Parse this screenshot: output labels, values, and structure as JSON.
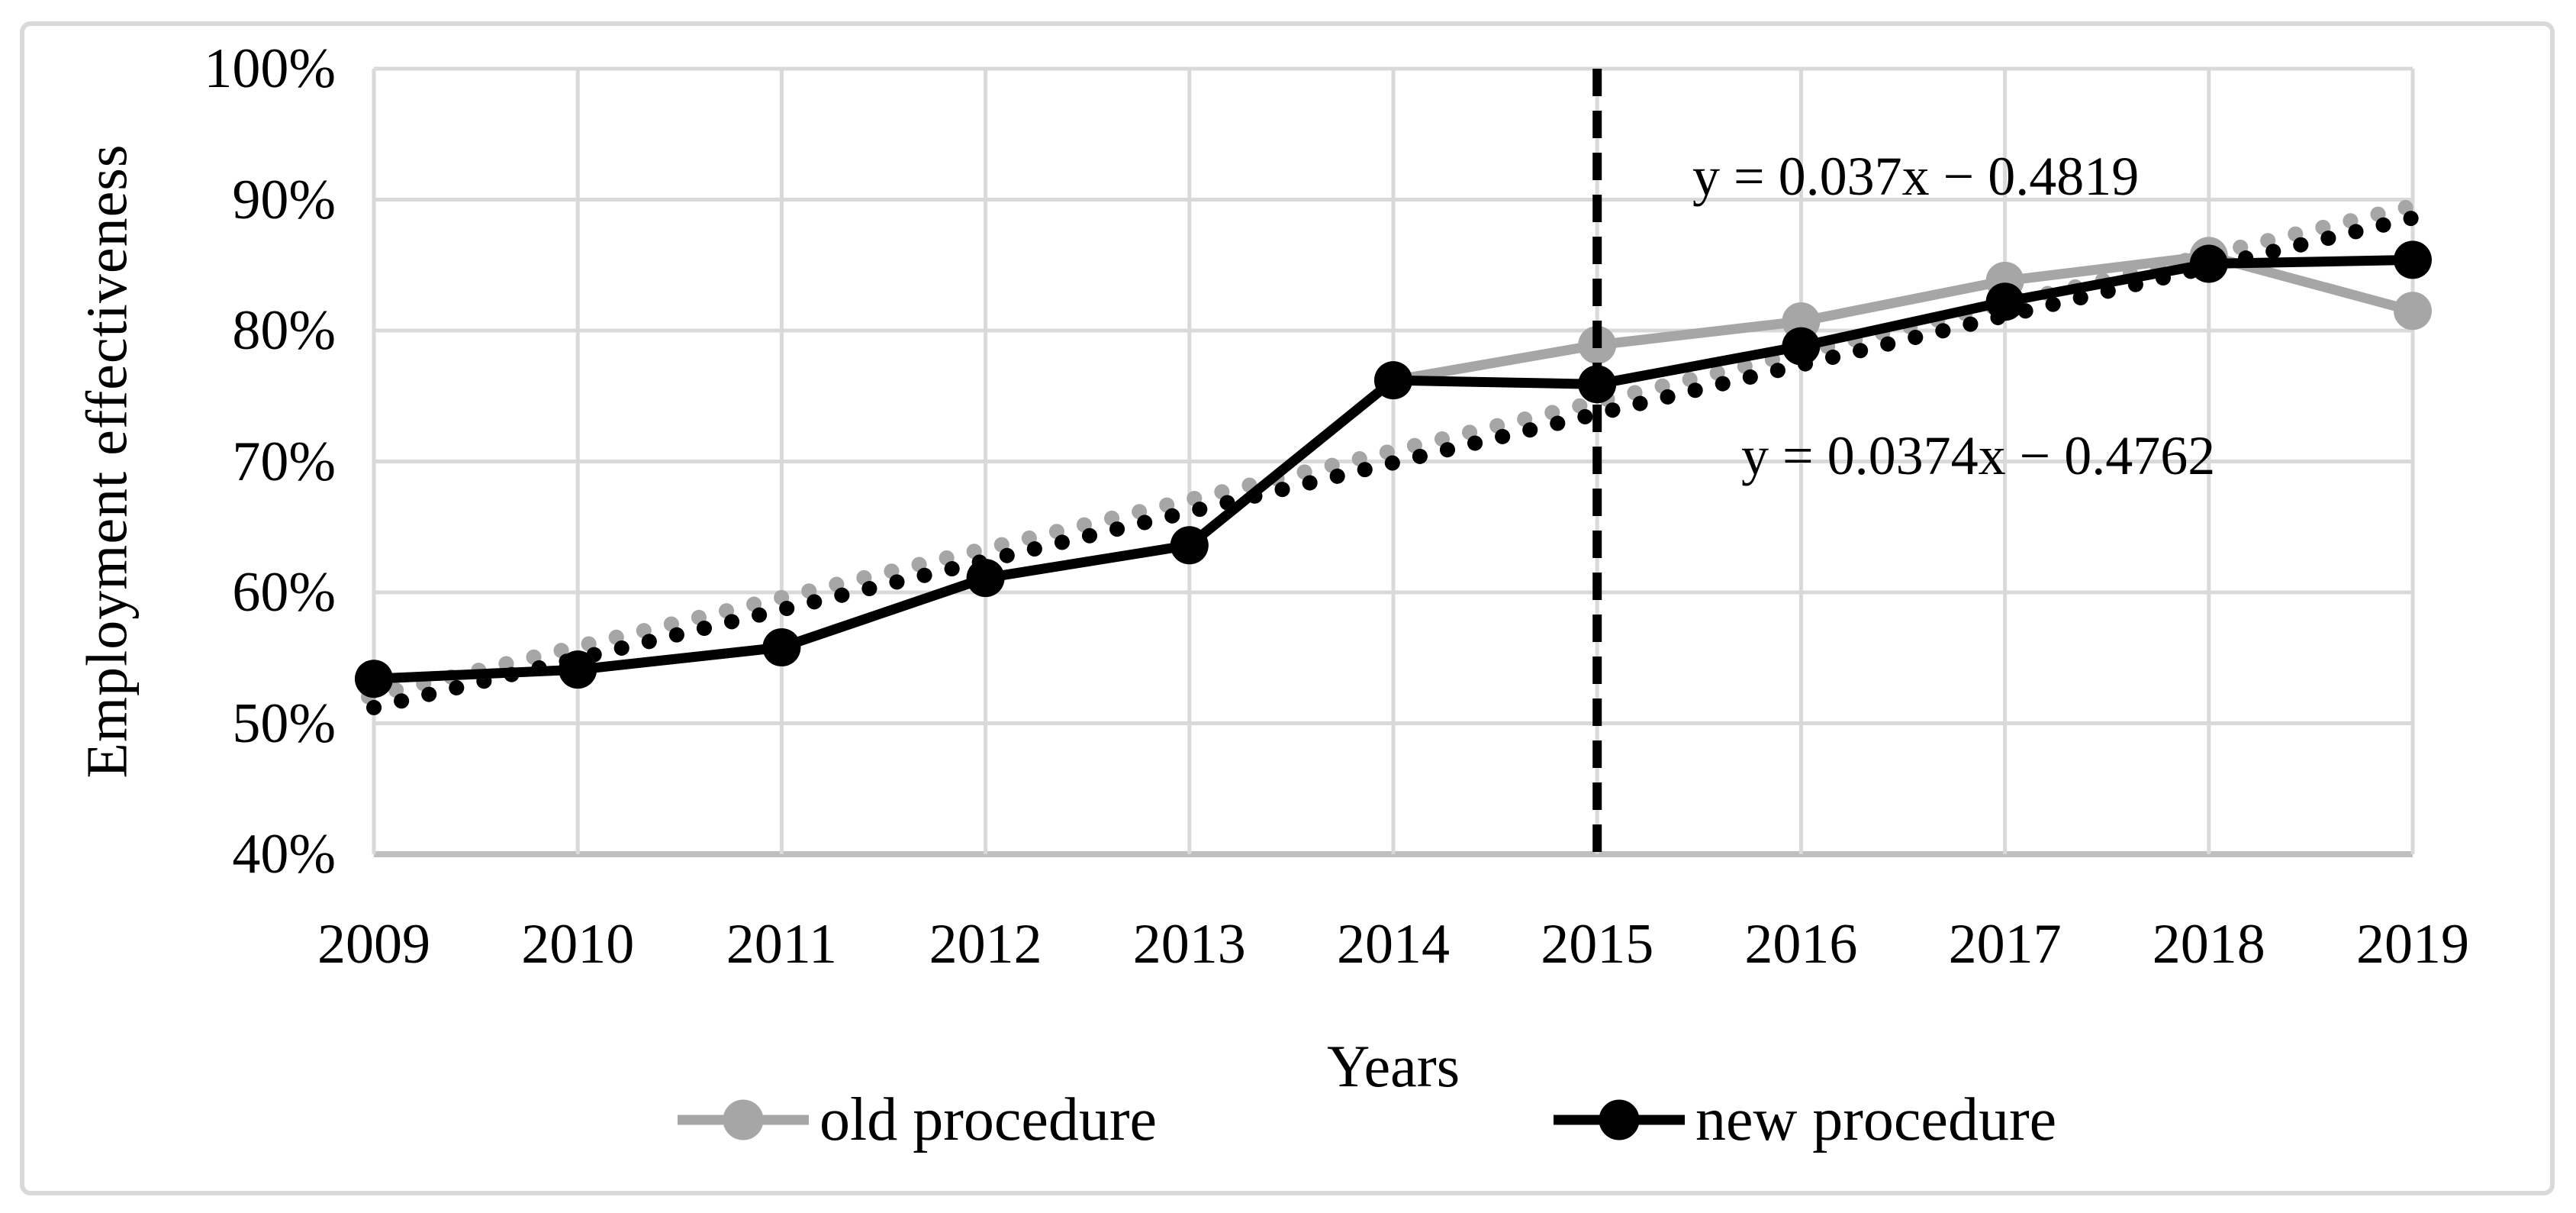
{
  "figure": {
    "kind": "excel-style line chart",
    "background": "#ffffff",
    "border_color": "#d9d9d9"
  },
  "colors": {
    "grid": "#d9d9d9",
    "axis": "#bfbfbf",
    "old_series": "#a6a6a6",
    "new_series": "#000000",
    "reference_line": "#000000"
  },
  "legend": {
    "items": [
      {
        "label": "old procedure",
        "color": "#a6a6a6"
      },
      {
        "label": "new procedure",
        "color": "#000000"
      }
    ]
  },
  "chart_data": {
    "type": "line",
    "title": "",
    "xlabel": "Years",
    "ylabel": "Employment effectiveness",
    "x": [
      2009,
      2010,
      2011,
      2012,
      2013,
      2014,
      2015,
      2016,
      2017,
      2018,
      2019
    ],
    "x_tick_labels": [
      "2009",
      "2010",
      "2011",
      "2012",
      "2013",
      "2014",
      "2015",
      "2016",
      "2017",
      "2018",
      "2019"
    ],
    "ylim": [
      40,
      100
    ],
    "y_ticks": [
      {
        "value": 100,
        "label": "100%"
      },
      {
        "value": 90,
        "label": "90%"
      },
      {
        "value": 80,
        "label": "80%"
      },
      {
        "value": 70,
        "label": "70%"
      },
      {
        "value": 60,
        "label": "60%"
      },
      {
        "value": 50,
        "label": "50%"
      },
      {
        "value": 40,
        "label": "40%"
      }
    ],
    "grid": true,
    "legend_position": "bottom",
    "series": [
      {
        "name": "old procedure",
        "color": "#a6a6a6",
        "marker": "circle",
        "values": [
          53.4,
          54.1,
          55.8,
          61.1,
          63.6,
          76.2,
          78.9,
          80.7,
          83.8,
          85.7,
          81.5
        ]
      },
      {
        "name": "new procedure",
        "color": "#000000",
        "marker": "circle",
        "values": [
          53.4,
          54.1,
          55.8,
          61.1,
          63.6,
          76.2,
          75.9,
          78.8,
          82.2,
          85.1,
          85.4
        ]
      }
    ],
    "trendlines": [
      {
        "for": "old procedure",
        "equation": "y = 0.037x − 0.4819",
        "style": "dotted",
        "color": "#a6a6a6",
        "start_value": 51.5,
        "end_value": 88.9
      },
      {
        "for": "new procedure",
        "equation": "y = 0.0374x − 0.4762",
        "style": "dotted",
        "color": "#000000",
        "start_value": 51.2,
        "end_value": 88.6
      }
    ],
    "reference_line": {
      "x": 2015,
      "style": "dashed",
      "color": "#000000"
    }
  }
}
